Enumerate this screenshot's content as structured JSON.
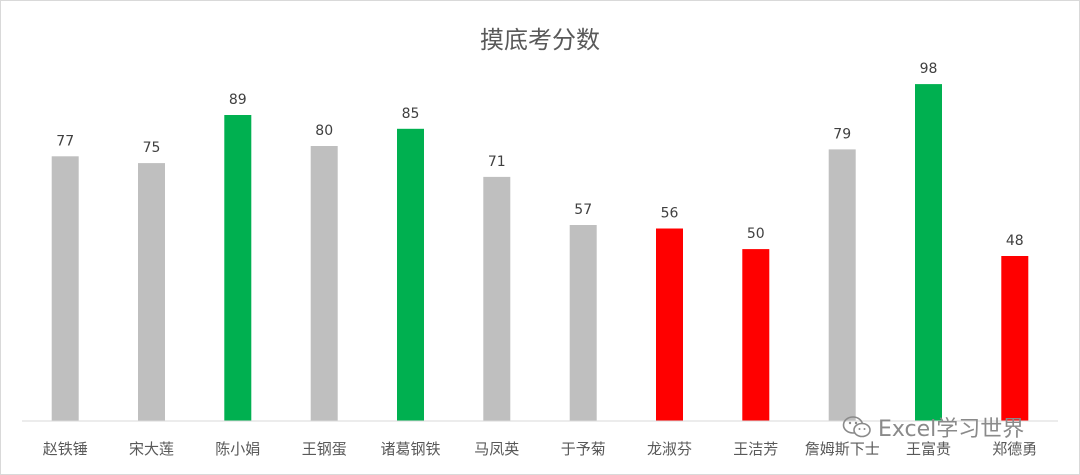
{
  "chart_data": {
    "type": "bar",
    "title": "摸底考分数",
    "categories": [
      "赵铁锤",
      "宋大莲",
      "陈小娟",
      "王钢蛋",
      "诸葛钢铁",
      "马凤英",
      "于予菊",
      "龙淑芬",
      "王洁芳",
      "詹姆斯下士",
      "王富贵",
      "郑德勇"
    ],
    "values": [
      77,
      75,
      89,
      80,
      85,
      71,
      57,
      56,
      50,
      79,
      98,
      48
    ],
    "bar_colors": [
      "#bfbfbf",
      "#bfbfbf",
      "#00b050",
      "#bfbfbf",
      "#00b050",
      "#bfbfbf",
      "#bfbfbf",
      "#ff0000",
      "#ff0000",
      "#bfbfbf",
      "#00b050",
      "#ff0000"
    ],
    "ylim": [
      0,
      105
    ],
    "grid": false,
    "legend": "none"
  },
  "watermark": {
    "text": "Excel学习世界",
    "icon": "wechat-icon"
  }
}
